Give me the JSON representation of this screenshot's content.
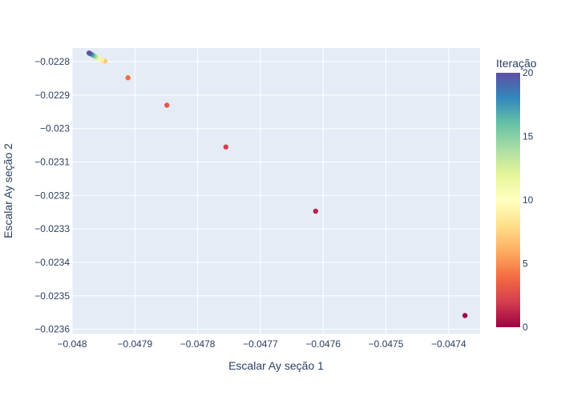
{
  "chart_data": {
    "type": "scatter",
    "title": "",
    "xlabel": "Escalar Ay seção 1",
    "ylabel": "Escalar Ay seção 2",
    "xlim": [
      -0.048,
      -0.04735
    ],
    "ylim": [
      -0.023613,
      -0.022759
    ],
    "x_ticks": [
      -0.048,
      -0.0479,
      -0.0478,
      -0.0477,
      -0.0476,
      -0.0475,
      -0.0474
    ],
    "x_tick_labels": [
      "−0.048",
      "−0.0479",
      "−0.0478",
      "−0.0477",
      "−0.0476",
      "−0.0475",
      "−0.0474"
    ],
    "y_ticks": [
      -0.0228,
      -0.0229,
      -0.023,
      -0.0231,
      -0.0232,
      -0.0233,
      -0.0234,
      -0.0235,
      -0.0236
    ],
    "y_tick_labels": [
      "−0.0228",
      "−0.0229",
      "−0.023",
      "−0.0231",
      "−0.0232",
      "−0.0233",
      "−0.0234",
      "−0.0235",
      "−0.0236"
    ],
    "grid": true,
    "plot_background": "#e5ecf6",
    "grid_color": "#ffffff",
    "colorscale": "Spectral",
    "colorbar": {
      "title": "Iteração",
      "range": [
        0,
        20
      ],
      "ticks": [
        0,
        5,
        10,
        15,
        20
      ],
      "tick_labels": [
        "0",
        "5",
        "10",
        "15",
        "20"
      ],
      "stops": [
        "#9e0142",
        "#d53e4f",
        "#f46d43",
        "#fdae61",
        "#fee08b",
        "#ffffbf",
        "#e6f598",
        "#abdda4",
        "#66c2a5",
        "#3288bd",
        "#5e4fa2"
      ]
    },
    "points": [
      {
        "x": -0.047374,
        "y": -0.023559,
        "iter": 0
      },
      {
        "x": -0.047612,
        "y": -0.023247,
        "iter": 1
      },
      {
        "x": -0.047755,
        "y": -0.023055,
        "iter": 2
      },
      {
        "x": -0.047849,
        "y": -0.02293,
        "iter": 3
      },
      {
        "x": -0.047911,
        "y": -0.022848,
        "iter": 4
      },
      {
        "x": -0.047948,
        "y": -0.022798,
        "iter": 7
      },
      {
        "x": -0.047953,
        "y": -0.022795,
        "iter": 9
      },
      {
        "x": -0.047958,
        "y": -0.02279,
        "iter": 11
      },
      {
        "x": -0.047962,
        "y": -0.022786,
        "iter": 13
      },
      {
        "x": -0.047965,
        "y": -0.022783,
        "iter": 15
      },
      {
        "x": -0.047968,
        "y": -0.022779,
        "iter": 17
      },
      {
        "x": -0.047971,
        "y": -0.022776,
        "iter": 19
      },
      {
        "x": -0.047973,
        "y": -0.022774,
        "iter": 20
      }
    ]
  }
}
